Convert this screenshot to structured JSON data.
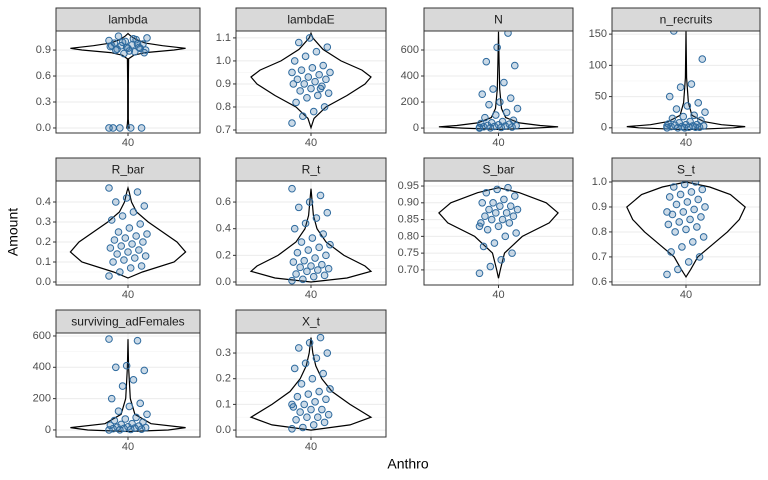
{
  "axis_titles": {
    "x": "Anthro",
    "y": "Amount"
  },
  "chart_data": [
    {
      "type": "violin",
      "title": "lambda",
      "categories": [
        "40"
      ],
      "color": "#2e6a9e",
      "ylim": [
        -0.058,
        1.12
      ],
      "yticks": [
        {
          "value": 0,
          "label": "0.0"
        },
        0.3,
        0.6,
        0.9
      ],
      "violin": {
        "y": [
          0,
          0.05,
          0.1,
          0.5,
          0.8,
          0.84,
          0.87,
          0.9,
          0.92,
          0.95,
          0.98,
          1.02,
          1.06,
          1.09
        ],
        "width": [
          0.02,
          0.01,
          0.005,
          0.005,
          0.01,
          0.1,
          0.3,
          0.8,
          1,
          0.6,
          0.3,
          0.15,
          0.05,
          0
        ]
      },
      "points": [
        0,
        0,
        0,
        0,
        0,
        0.86,
        0.88,
        0.9,
        0.91,
        0.92,
        0.93,
        0.94,
        0.95,
        0.96,
        0.97,
        0.98,
        1.0,
        1.02,
        1.04,
        1.06,
        0.89,
        0.92,
        0.95,
        0.99,
        1.03,
        0.87,
        0.9,
        0.93,
        0.97,
        1.01
      ]
    },
    {
      "type": "violin",
      "title": "lambdaE",
      "categories": [
        "40"
      ],
      "color": "#2e6a9e",
      "ylim": [
        0.687,
        1.13
      ],
      "yticks": [
        0.7,
        0.8,
        0.9,
        {
          "value": 1,
          "label": "1.0"
        },
        1.1
      ],
      "violin": {
        "y": [
          0.71,
          0.75,
          0.8,
          0.85,
          0.9,
          0.93,
          0.96,
          1.0,
          1.05,
          1.1,
          1.12
        ],
        "width": [
          0,
          0.05,
          0.25,
          0.6,
          0.9,
          1,
          0.85,
          0.5,
          0.2,
          0.03,
          0
        ]
      },
      "points": [
        0.73,
        0.76,
        0.78,
        0.8,
        0.82,
        0.84,
        0.85,
        0.86,
        0.87,
        0.88,
        0.89,
        0.9,
        0.9,
        0.91,
        0.92,
        0.92,
        0.93,
        0.94,
        0.95,
        0.96,
        0.97,
        0.98,
        1.0,
        1.02,
        1.04,
        1.06,
        1.08,
        1.1,
        0.88,
        0.95
      ]
    },
    {
      "type": "violin",
      "title": "N",
      "categories": [
        "40"
      ],
      "color": "#2e6a9e",
      "ylim": [
        -38,
        746
      ],
      "yticks": [
        0,
        200,
        400,
        600
      ],
      "violin": {
        "y": [
          -10,
          0,
          10,
          20,
          40,
          80,
          150,
          300,
          500,
          740
        ],
        "width": [
          0,
          0.6,
          1,
          0.7,
          0.35,
          0.12,
          0.05,
          0.02,
          0.01,
          0
        ]
      },
      "points": [
        0,
        2,
        5,
        8,
        10,
        12,
        15,
        18,
        20,
        25,
        30,
        35,
        40,
        50,
        60,
        80,
        100,
        120,
        150,
        180,
        200,
        230,
        260,
        300,
        350,
        480,
        510,
        620,
        730,
        5
      ]
    },
    {
      "type": "violin",
      "title": "n_recruits",
      "categories": [
        "40"
      ],
      "color": "#2e6a9e",
      "ylim": [
        -8.3,
        155
      ],
      "yticks": [
        0,
        50,
        100,
        150
      ],
      "violin": {
        "y": [
          -3,
          0,
          2,
          5,
          10,
          20,
          40,
          80,
          155
        ],
        "width": [
          0,
          0.8,
          1,
          0.6,
          0.3,
          0.1,
          0.04,
          0.01,
          0
        ]
      },
      "points": [
        0,
        0,
        1,
        1,
        2,
        2,
        3,
        3,
        4,
        5,
        5,
        6,
        8,
        10,
        12,
        15,
        18,
        20,
        25,
        30,
        35,
        40,
        50,
        65,
        70,
        110,
        155,
        0,
        1,
        3
      ]
    },
    {
      "type": "violin",
      "title": "R_bar",
      "categories": [
        "40"
      ],
      "color": "#2e6a9e",
      "ylim": [
        -0.015,
        0.505
      ],
      "yticks": [
        {
          "value": 0,
          "label": "0.0"
        },
        0.1,
        0.2,
        0.3,
        0.4
      ],
      "violin": {
        "y": [
          0.02,
          0.05,
          0.1,
          0.15,
          0.2,
          0.25,
          0.3,
          0.35,
          0.4,
          0.45,
          0.47
        ],
        "width": [
          0,
          0.25,
          0.8,
          1,
          0.85,
          0.6,
          0.35,
          0.15,
          0.06,
          0.02,
          0
        ]
      },
      "points": [
        0.03,
        0.05,
        0.07,
        0.08,
        0.1,
        0.11,
        0.12,
        0.13,
        0.14,
        0.15,
        0.16,
        0.17,
        0.18,
        0.19,
        0.2,
        0.21,
        0.22,
        0.23,
        0.24,
        0.25,
        0.27,
        0.29,
        0.31,
        0.33,
        0.35,
        0.38,
        0.4,
        0.42,
        0.45,
        0.47
      ]
    },
    {
      "type": "violin",
      "title": "R_t",
      "categories": [
        "40"
      ],
      "color": "#2e6a9e",
      "ylim": [
        -0.0225,
        0.758
      ],
      "yticks": [
        {
          "value": 0,
          "label": "0.0"
        },
        0.2,
        0.4,
        0.6
      ],
      "violin": {
        "y": [
          0,
          0.03,
          0.08,
          0.12,
          0.2,
          0.3,
          0.4,
          0.5,
          0.6,
          0.7
        ],
        "width": [
          0,
          0.6,
          1,
          0.9,
          0.55,
          0.25,
          0.1,
          0.04,
          0.02,
          0
        ]
      },
      "points": [
        0.01,
        0.02,
        0.04,
        0.05,
        0.06,
        0.08,
        0.09,
        0.1,
        0.11,
        0.12,
        0.13,
        0.15,
        0.16,
        0.18,
        0.2,
        0.22,
        0.24,
        0.26,
        0.28,
        0.3,
        0.33,
        0.36,
        0.4,
        0.44,
        0.48,
        0.52,
        0.56,
        0.6,
        0.65,
        0.7
      ]
    },
    {
      "type": "violin",
      "title": "S_bar",
      "categories": [
        "40"
      ],
      "color": "#2e6a9e",
      "ylim": [
        0.655,
        0.965
      ],
      "yticks": [
        {
          "value": 0.7,
          "label": "0.70"
        },
        0.75,
        {
          "value": 0.8,
          "label": "0.80"
        },
        0.85,
        {
          "value": 0.9,
          "label": "0.90"
        },
        0.95
      ],
      "violin": {
        "y": [
          0.675,
          0.7,
          0.75,
          0.8,
          0.84,
          0.87,
          0.9,
          0.93,
          0.945
        ],
        "width": [
          0,
          0.03,
          0.1,
          0.4,
          0.85,
          1,
          0.8,
          0.35,
          0
        ]
      },
      "points": [
        0.69,
        0.71,
        0.73,
        0.75,
        0.77,
        0.78,
        0.8,
        0.81,
        0.82,
        0.83,
        0.84,
        0.84,
        0.85,
        0.85,
        0.86,
        0.86,
        0.87,
        0.87,
        0.88,
        0.88,
        0.89,
        0.89,
        0.9,
        0.9,
        0.91,
        0.92,
        0.93,
        0.94,
        0.945,
        0.83
      ]
    },
    {
      "type": "violin",
      "title": "S_t",
      "categories": [
        "40"
      ],
      "color": "#2e6a9e",
      "ylim": [
        0.5875,
        1.004
      ],
      "yticks": [
        0.6,
        0.7,
        0.8,
        0.9,
        {
          "value": 1,
          "label": "1.0"
        }
      ],
      "violin": {
        "y": [
          0.62,
          0.65,
          0.7,
          0.75,
          0.8,
          0.85,
          0.9,
          0.95,
          0.98,
          1.0
        ],
        "width": [
          0,
          0.08,
          0.2,
          0.45,
          0.7,
          0.9,
          1,
          0.75,
          0.4,
          0
        ]
      },
      "points": [
        0.63,
        0.65,
        0.68,
        0.7,
        0.72,
        0.74,
        0.76,
        0.78,
        0.8,
        0.81,
        0.82,
        0.83,
        0.84,
        0.85,
        0.86,
        0.87,
        0.88,
        0.89,
        0.9,
        0.91,
        0.92,
        0.93,
        0.94,
        0.95,
        0.96,
        0.97,
        0.98,
        0.99,
        1.0,
        0.88
      ]
    },
    {
      "type": "violin",
      "title": "surviving_adFemales",
      "categories": [
        "40"
      ],
      "color": "#2e6a9e",
      "ylim": [
        -45,
        619
      ],
      "yticks": [
        0,
        200,
        400,
        600
      ],
      "violin": {
        "y": [
          -10,
          0,
          15,
          40,
          100,
          200,
          400,
          580
        ],
        "width": [
          0,
          0.7,
          1,
          0.4,
          0.12,
          0.04,
          0.01,
          0
        ]
      },
      "points": [
        0,
        1,
        3,
        5,
        8,
        10,
        12,
        15,
        18,
        20,
        25,
        30,
        35,
        40,
        50,
        60,
        70,
        80,
        100,
        120,
        150,
        170,
        200,
        280,
        320,
        380,
        400,
        410,
        570,
        580
      ]
    },
    {
      "type": "violin",
      "title": "X_t",
      "categories": [
        "40"
      ],
      "color": "#2e6a9e",
      "ylim": [
        -0.027,
        0.378
      ],
      "yticks": [
        {
          "value": 0,
          "label": "0.0"
        },
        0.1,
        0.2,
        0.3
      ],
      "violin": {
        "y": [
          0,
          0.02,
          0.05,
          0.1,
          0.15,
          0.2,
          0.25,
          0.3,
          0.36
        ],
        "width": [
          0,
          0.65,
          1,
          0.65,
          0.35,
          0.18,
          0.08,
          0.03,
          0
        ]
      },
      "points": [
        0.005,
        0.01,
        0.02,
        0.03,
        0.04,
        0.05,
        0.05,
        0.06,
        0.07,
        0.08,
        0.08,
        0.09,
        0.1,
        0.11,
        0.12,
        0.13,
        0.14,
        0.15,
        0.16,
        0.18,
        0.2,
        0.22,
        0.24,
        0.26,
        0.28,
        0.3,
        0.32,
        0.34,
        0.36,
        0.1
      ]
    }
  ]
}
